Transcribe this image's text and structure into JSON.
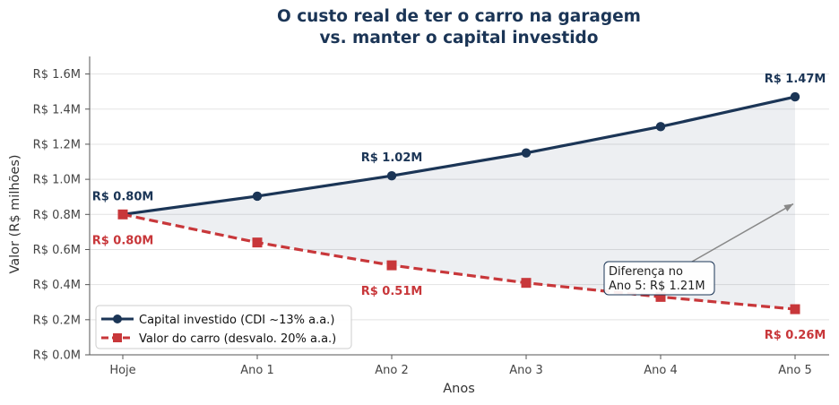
{
  "chart_data": {
    "type": "line",
    "title_line1": "O custo real de ter o carro na garagem",
    "title_line2": "vs. manter o capital investido",
    "xlabel": "Anos",
    "ylabel": "Valor (R$ milhões)",
    "categories": [
      "Hoje",
      "Ano 1",
      "Ano 2",
      "Ano 3",
      "Ano 4",
      "Ano 5"
    ],
    "ylim": [
      0,
      1.7
    ],
    "yticks": [
      0,
      0.2,
      0.4,
      0.6,
      0.8,
      1.0,
      1.2,
      1.4,
      1.6
    ],
    "ytick_labels": [
      "R$ 0.0M",
      "R$ 0.2M",
      "R$ 0.4M",
      "R$ 0.6M",
      "R$ 0.8M",
      "R$ 1.0M",
      "R$ 1.2M",
      "R$ 1.4M",
      "R$ 1.6M"
    ],
    "grid": "horizontal",
    "legend_position": "lower-left",
    "shaded_between_series": true,
    "series": [
      {
        "name": "Capital investido (CDI ~13% a.a.)",
        "color": "#1b3556",
        "style": "solid",
        "marker": "circle",
        "values": [
          0.8,
          0.904,
          1.02,
          1.15,
          1.3,
          1.47
        ]
      },
      {
        "name": "Valor do carro (desvalo. 20% a.a.)",
        "color": "#c8373a",
        "style": "dashed",
        "marker": "square",
        "values": [
          0.8,
          0.64,
          0.51,
          0.41,
          0.33,
          0.26
        ]
      }
    ],
    "data_labels": [
      {
        "series": 0,
        "index": 0,
        "text": "R$ 0.80M",
        "place": "above"
      },
      {
        "series": 0,
        "index": 2,
        "text": "R$ 1.02M",
        "place": "above"
      },
      {
        "series": 0,
        "index": 5,
        "text": "R$ 1.47M",
        "place": "above"
      },
      {
        "series": 1,
        "index": 0,
        "text": "R$ 0.80M",
        "place": "below"
      },
      {
        "series": 1,
        "index": 2,
        "text": "R$ 0.51M",
        "place": "below"
      },
      {
        "series": 1,
        "index": 5,
        "text": "R$ 0.26M",
        "place": "below"
      }
    ],
    "annotation": {
      "line1": "Diferença no",
      "line2": "Ano 5: R$ 1.21M",
      "arrow_target": {
        "x": "Ano 5",
        "y": 0.86
      }
    }
  }
}
